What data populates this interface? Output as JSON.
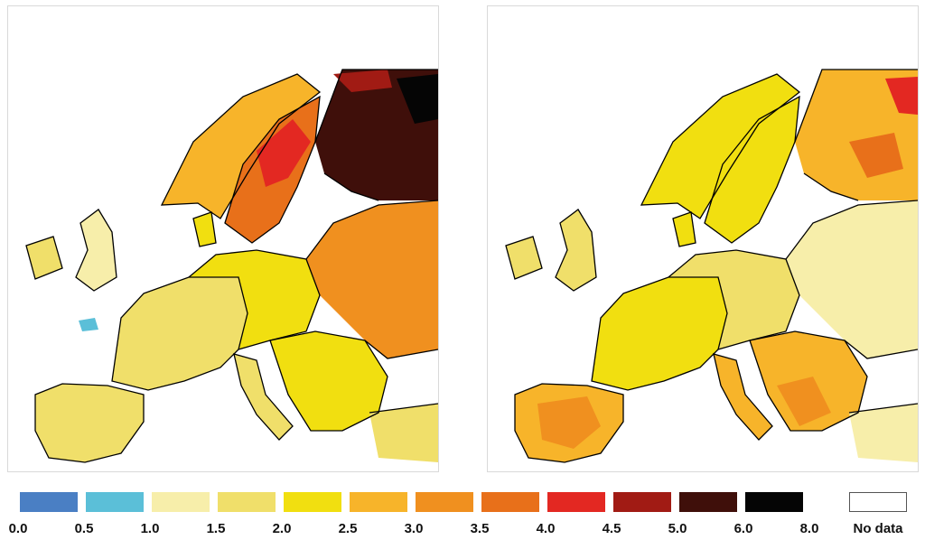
{
  "legend": {
    "classes": [
      {
        "color": "#4a7fc4"
      },
      {
        "color": "#5bbfd8"
      },
      {
        "color": "#f7eeaa"
      },
      {
        "color": "#f0df6a"
      },
      {
        "color": "#f1df10"
      },
      {
        "color": "#f7b42a"
      },
      {
        "color": "#f0901f"
      },
      {
        "color": "#e8701a"
      },
      {
        "color": "#e32822"
      },
      {
        "color": "#a11b14"
      },
      {
        "color": "#3f0f0a"
      },
      {
        "color": "#050505"
      }
    ],
    "ticks": [
      "0.0",
      "0.5",
      "1.0",
      "1.5",
      "2.0",
      "2.5",
      "3.0",
      "3.5",
      "4.0",
      "4.5",
      "5.0",
      "6.0",
      "8.0"
    ],
    "no_data_label": "No data",
    "no_data_color": "#ffffff"
  }
}
